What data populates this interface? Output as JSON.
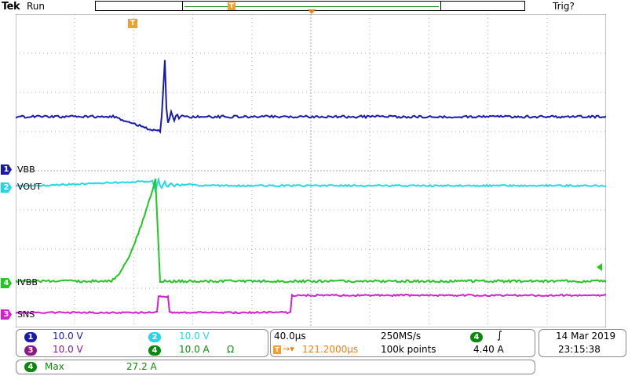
{
  "header": {
    "brand": "Tek",
    "run_state": "Run",
    "trigger_state": "Trig?"
  },
  "markers": {
    "trigger_position": "T",
    "record_trigger": "T"
  },
  "channels": [
    {
      "id": "1",
      "label": "VBB",
      "color": "#1a1ab0",
      "scale": "10.0 V"
    },
    {
      "id": "2",
      "label": "VOUT",
      "color": "#20d8e8",
      "scale": "10.0 V"
    },
    {
      "id": "3",
      "label": "SNS",
      "color": "#d020d0",
      "scale": "10.0 V"
    },
    {
      "id": "4",
      "label": "IVBB",
      "color": "#20c820",
      "scale": "10.0 A",
      "suffix": "Ω"
    }
  ],
  "horizontal": {
    "timebase": "40.0µs",
    "delay_prefix": "T",
    "delay": "121.2000µs",
    "sample_rate": "250MS/s",
    "record_length": "100k points"
  },
  "trigger": {
    "source": "4",
    "slope_icon": "rising-edge-icon",
    "slope_symbol": "∫",
    "level": "4.40 A"
  },
  "datetime": {
    "date": "14 Mar  2019",
    "time": "23:15:38"
  },
  "measurement": {
    "source": "4",
    "name": "Max",
    "value": "27.2 A"
  }
}
